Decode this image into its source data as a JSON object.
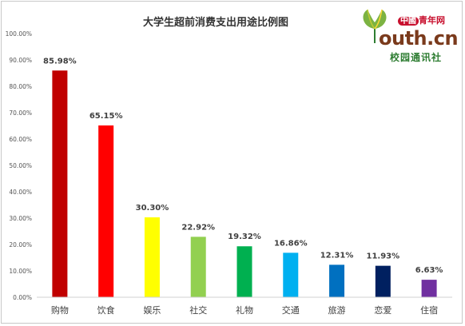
{
  "chart_data": {
    "type": "bar",
    "title": "大学生超前消费支出用途比例图",
    "categories": [
      "购物",
      "饮食",
      "娱乐",
      "社交",
      "礼物",
      "交通",
      "旅游",
      "恋爱",
      "住宿"
    ],
    "values": [
      85.98,
      65.15,
      30.3,
      22.92,
      19.32,
      16.86,
      12.31,
      11.93,
      6.63
    ],
    "value_labels": [
      "85.98%",
      "65.15%",
      "30.30%",
      "22.92%",
      "19.32%",
      "16.86%",
      "12.31%",
      "11.93%",
      "6.63%"
    ],
    "colors": [
      "#c00000",
      "#ff0000",
      "#ffff00",
      "#92d050",
      "#00b050",
      "#00b0f0",
      "#0070c0",
      "#002060",
      "#7030a0"
    ],
    "yticks": [
      "0.00%",
      "10.00%",
      "20.00%",
      "30.00%",
      "40.00%",
      "50.00%",
      "60.00%",
      "70.00%",
      "80.00%",
      "90.00%",
      "100.00%"
    ],
    "ylim": [
      0,
      100
    ],
    "xlabel": "",
    "ylabel": "",
    "grid": false,
    "legend": "none"
  },
  "logo": {
    "badge": "中國",
    "top_text": "青年网",
    "main_text": "outh.cn",
    "sub_text": "校园通讯社"
  }
}
